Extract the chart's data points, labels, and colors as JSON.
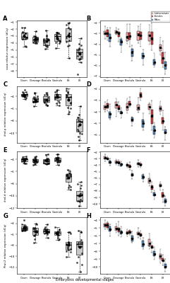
{
  "panels": [
    "A",
    "B",
    "C",
    "D",
    "E",
    "F",
    "G",
    "H"
  ],
  "stages": [
    "Ovum",
    "Cleavage",
    "Blastula",
    "Gastrula",
    "ES",
    "L8"
  ],
  "ylabel_A": "vasa relative expression (dCq)",
  "ylabel_C": "dnd-p relative expression (dCq)",
  "ylabel_E": "dnd-d relative expression (dCq)",
  "ylabel_G": "Piwi-2 relative expression (dCq)",
  "xlabel": "Embryonic developmental stages",
  "gray_color": "#c8c8c8",
  "ind_color": "#f0b0b0",
  "fem_color": "#cc4444",
  "mal_color": "#5588bb",
  "legend_labels": [
    "Indeterminate",
    "Females",
    "Males"
  ]
}
